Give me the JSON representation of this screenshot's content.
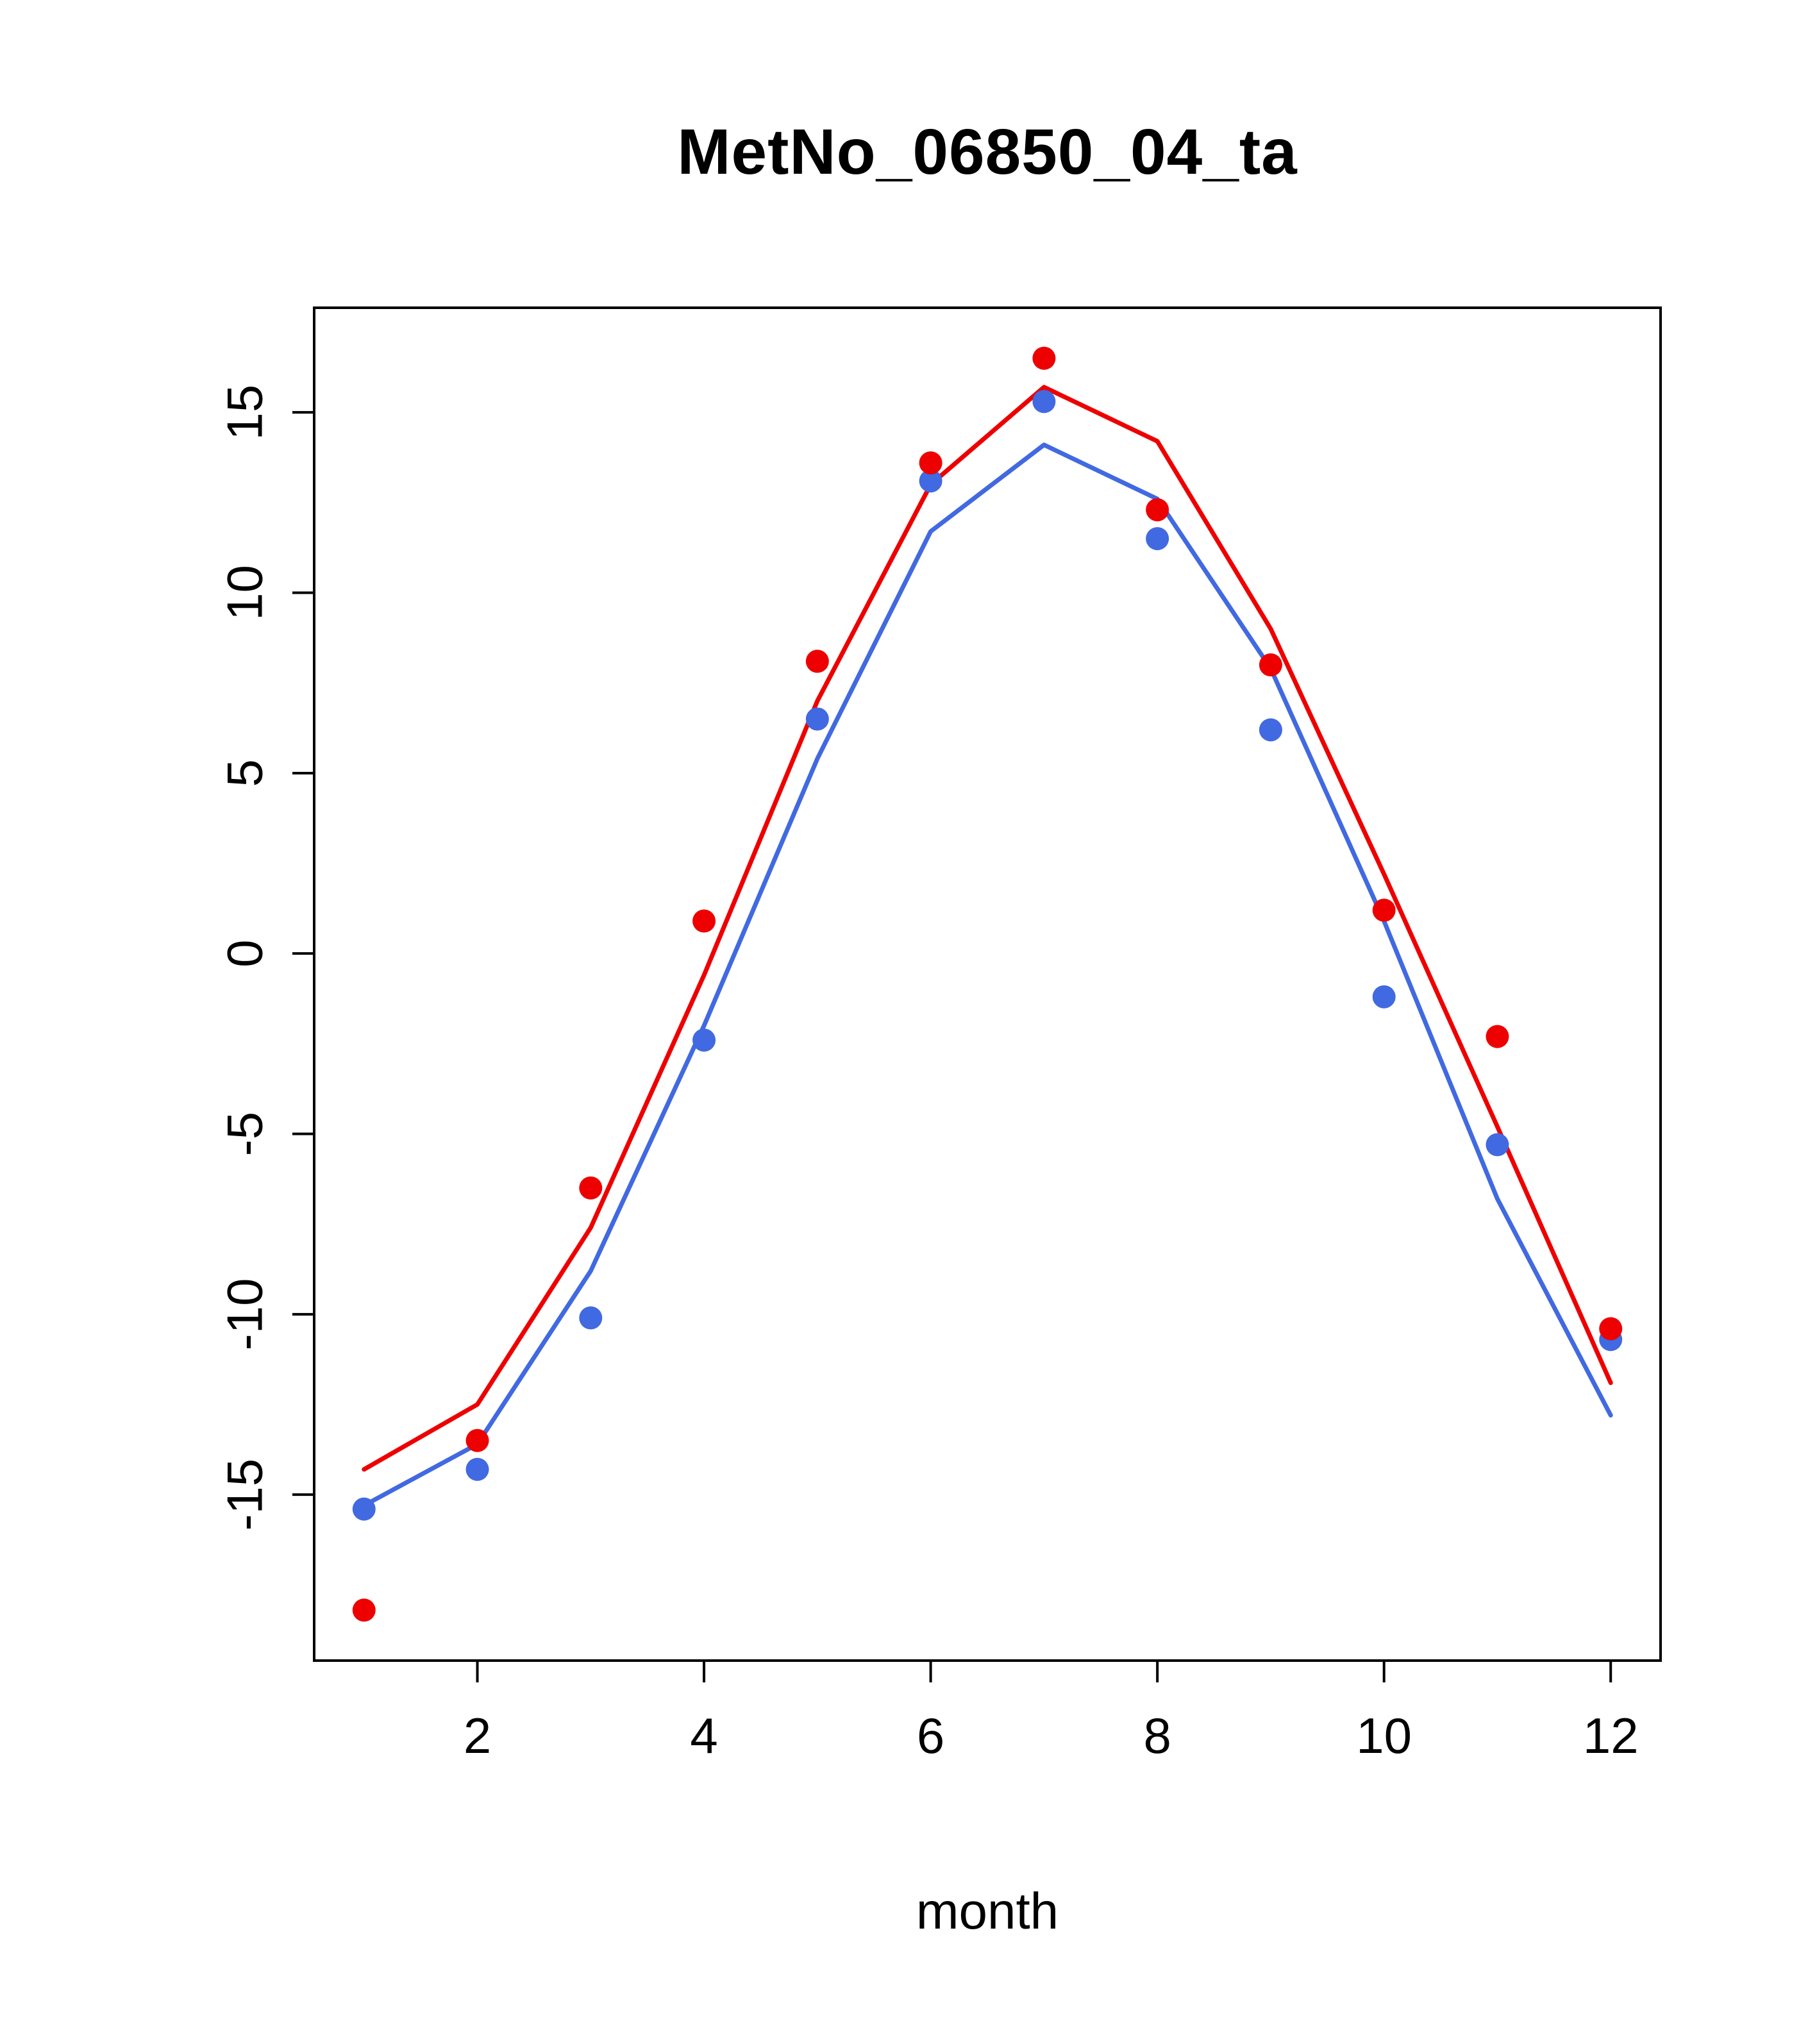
{
  "chart_data": {
    "type": "line",
    "title": "MetNo_06850_04_ta",
    "xlabel": "month",
    "ylabel": "",
    "grid": false,
    "legend": "none",
    "x": [
      1,
      2,
      3,
      4,
      5,
      6,
      7,
      8,
      9,
      10,
      11,
      12
    ],
    "x_ticks": [
      2,
      4,
      6,
      8,
      10,
      12
    ],
    "y_ticks": [
      -15,
      -10,
      -5,
      0,
      5,
      10,
      15
    ],
    "xlim": [
      0.56,
      12.44
    ],
    "ylim": [
      -19.6,
      17.9
    ],
    "axis_color": "#000000",
    "series": [
      {
        "name": "blue-line",
        "kind": "line",
        "color": "#4169E1",
        "values": [
          -15.3,
          -13.6,
          -8.8,
          -2.0,
          5.4,
          11.7,
          14.1,
          12.6,
          7.9,
          0.9,
          -6.8,
          -12.8
        ]
      },
      {
        "name": "red-line",
        "kind": "line",
        "color": "#EE0000",
        "values": [
          -14.3,
          -12.5,
          -7.6,
          -0.6,
          7.0,
          13.0,
          15.7,
          14.2,
          9.0,
          2.2,
          -4.8,
          -11.9
        ]
      },
      {
        "name": "blue-points",
        "kind": "scatter",
        "color": "#4169E1",
        "values": [
          -15.4,
          -14.3,
          -10.1,
          -2.4,
          6.5,
          13.1,
          15.3,
          11.5,
          6.2,
          -1.2,
          -5.3,
          -10.7
        ]
      },
      {
        "name": "red-points",
        "kind": "scatter",
        "color": "#EE0000",
        "values": [
          -18.2,
          -13.5,
          -6.5,
          0.9,
          8.1,
          13.6,
          16.5,
          12.3,
          8.0,
          1.2,
          -2.3,
          -10.4
        ]
      }
    ]
  }
}
